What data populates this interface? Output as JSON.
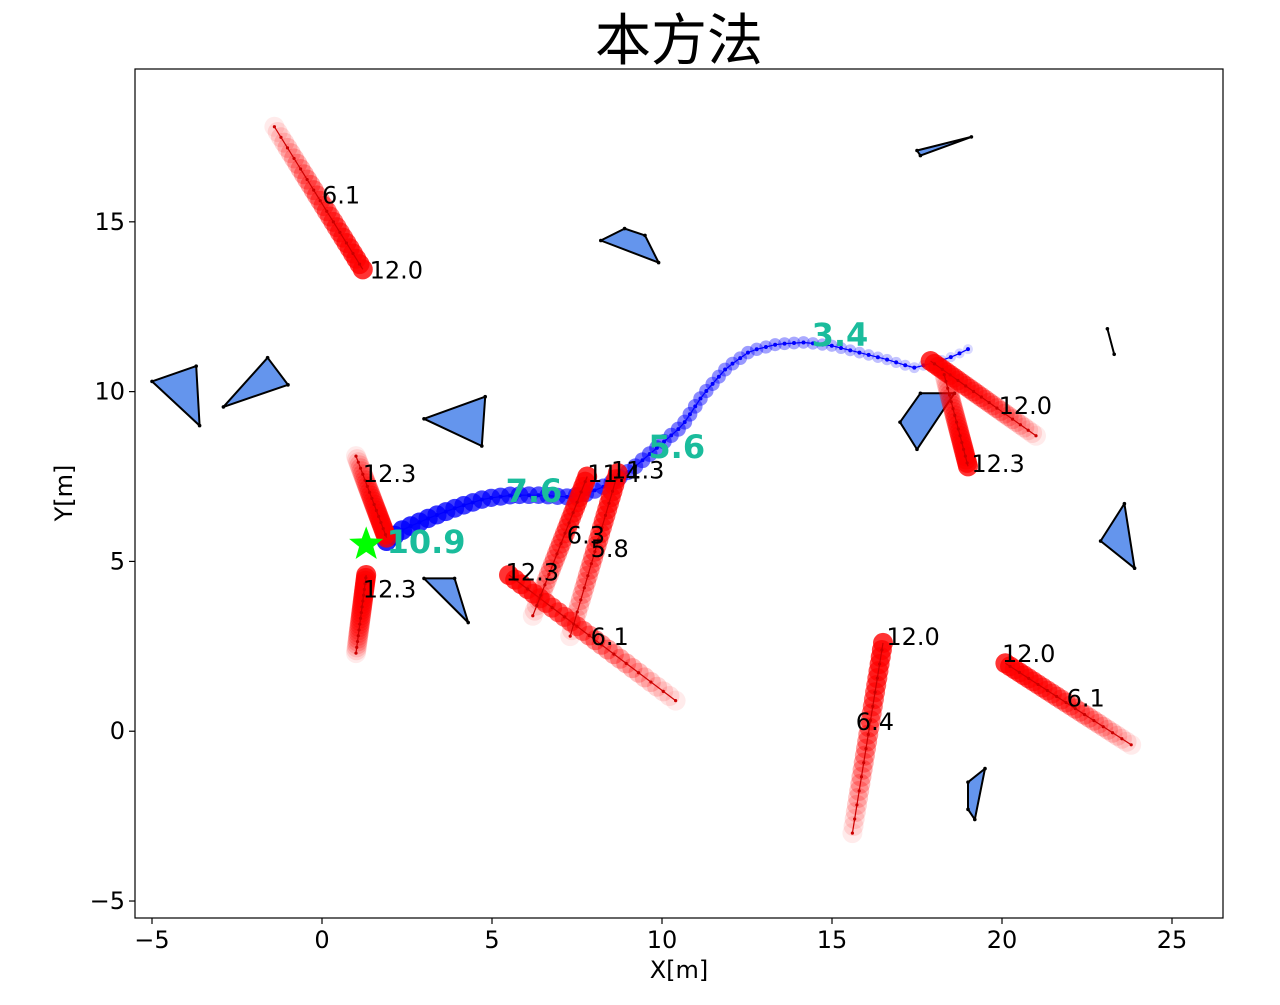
{
  "chart_data": {
    "type": "scatter",
    "title": "本方法",
    "xlabel": "X[m]",
    "ylabel": "Y[m]",
    "xlim": [
      -5.5,
      26.5
    ],
    "ylim": [
      -5.5,
      19.5
    ],
    "xticks": [
      -5,
      0,
      5,
      10,
      15,
      20,
      25
    ],
    "yticks": [
      -5,
      0,
      5,
      10,
      15
    ],
    "xtick_labels": [
      "−5",
      "0",
      "5",
      "10",
      "15",
      "20",
      "25"
    ],
    "ytick_labels": [
      "−5",
      "0",
      "5",
      "10",
      "15"
    ],
    "grid": false,
    "colors": {
      "robot_path": "#0000ff",
      "robot_label": "#1abc9c",
      "pedestrian": "#ff0000",
      "obstacle_fill": "#6495ed",
      "obstacle_edge": "#000000",
      "goal": "#00ff00"
    },
    "goal": {
      "x": 1.3,
      "y": 5.5,
      "marker": "star"
    },
    "robot_path": {
      "points": [
        [
          1.9,
          5.6
        ],
        [
          2.4,
          5.95
        ],
        [
          3.2,
          6.3
        ],
        [
          4.0,
          6.6
        ],
        [
          4.8,
          6.85
        ],
        [
          5.6,
          6.95
        ],
        [
          6.4,
          6.95
        ],
        [
          7.2,
          6.9
        ],
        [
          7.8,
          7.0
        ],
        [
          8.4,
          7.25
        ],
        [
          9.1,
          7.7
        ],
        [
          9.8,
          8.3
        ],
        [
          10.6,
          9.0
        ],
        [
          11.2,
          9.9
        ],
        [
          11.9,
          10.7
        ],
        [
          12.6,
          11.2
        ],
        [
          13.4,
          11.4
        ],
        [
          14.2,
          11.45
        ],
        [
          15.0,
          11.35
        ],
        [
          15.8,
          11.15
        ],
        [
          16.6,
          10.95
        ],
        [
          17.4,
          10.7
        ],
        [
          18.0,
          10.85
        ],
        [
          18.6,
          11.05
        ],
        [
          19.0,
          11.25
        ]
      ],
      "labels": [
        {
          "text": "10.9",
          "x": 1.9,
          "y": 5.6
        },
        {
          "text": "7.6",
          "x": 5.4,
          "y": 7.1
        },
        {
          "text": "5.6",
          "x": 9.6,
          "y": 8.4
        },
        {
          "text": "3.4",
          "x": 14.4,
          "y": 11.7
        }
      ]
    },
    "pedestrians": [
      {
        "start": [
          -1.4,
          17.8
        ],
        "end": [
          1.2,
          13.6
        ],
        "labels": [
          {
            "text": "6.1",
            "x": 0.0,
            "y": 15.8
          },
          {
            "text": "12.0",
            "x": 1.4,
            "y": 13.6
          }
        ]
      },
      {
        "start": [
          1.0,
          8.1
        ],
        "end": [
          1.9,
          5.7
        ],
        "labels": [
          {
            "text": "12.3",
            "x": 1.2,
            "y": 7.6
          }
        ]
      },
      {
        "start": [
          1.0,
          2.3
        ],
        "end": [
          1.3,
          4.6
        ],
        "labels": [
          {
            "text": "12.3",
            "x": 1.2,
            "y": 4.2
          }
        ]
      },
      {
        "start": [
          10.4,
          0.9
        ],
        "end": [
          5.5,
          4.6
        ],
        "labels": [
          {
            "text": "12.3",
            "x": 5.4,
            "y": 4.7
          },
          {
            "text": "6.1",
            "x": 7.9,
            "y": 2.8
          }
        ]
      },
      {
        "start": [
          6.2,
          3.4
        ],
        "end": [
          7.8,
          7.5
        ],
        "labels": [
          {
            "text": "6.3",
            "x": 7.2,
            "y": 5.8
          },
          {
            "text": "11.4",
            "x": 7.8,
            "y": 7.6
          }
        ]
      },
      {
        "start": [
          7.3,
          2.8
        ],
        "end": [
          8.7,
          7.6
        ],
        "labels": [
          {
            "text": "5.8",
            "x": 7.9,
            "y": 5.4
          },
          {
            "text": "11.3",
            "x": 8.5,
            "y": 7.7
          }
        ]
      },
      {
        "start": [
          15.6,
          -3.0
        ],
        "end": [
          16.5,
          2.6
        ],
        "labels": [
          {
            "text": "6.4",
            "x": 15.7,
            "y": 0.3
          },
          {
            "text": "12.0",
            "x": 16.6,
            "y": 2.8
          }
        ]
      },
      {
        "start": [
          23.8,
          -0.4
        ],
        "end": [
          20.1,
          2.0
        ],
        "labels": [
          {
            "text": "12.0",
            "x": 20.0,
            "y": 2.3
          },
          {
            "text": "6.1",
            "x": 21.9,
            "y": 1.0
          }
        ]
      },
      {
        "start": [
          21.0,
          8.7
        ],
        "end": [
          17.9,
          10.9
        ],
        "labels": [
          {
            "text": "12.0",
            "x": 19.9,
            "y": 9.6
          }
        ]
      },
      {
        "start": [
          18.3,
          10.5
        ],
        "end": [
          19.0,
          7.8
        ],
        "labels": [
          {
            "text": "12.3",
            "x": 19.1,
            "y": 7.9
          }
        ]
      }
    ],
    "obstacles": [
      [
        [
          -5.0,
          10.3
        ],
        [
          -3.7,
          10.75
        ],
        [
          -3.6,
          9.0
        ]
      ],
      [
        [
          -2.9,
          9.55
        ],
        [
          -1.6,
          11.0
        ],
        [
          -1.0,
          10.2
        ]
      ],
      [
        [
          3.0,
          9.2
        ],
        [
          4.8,
          9.85
        ],
        [
          4.7,
          8.4
        ]
      ],
      [
        [
          3.0,
          4.5
        ],
        [
          3.9,
          4.5
        ],
        [
          4.3,
          3.2
        ]
      ],
      [
        [
          8.2,
          14.45
        ],
        [
          8.9,
          14.8
        ],
        [
          9.5,
          14.6
        ],
        [
          9.9,
          13.8
        ]
      ],
      [
        [
          17.6,
          9.95
        ],
        [
          18.6,
          9.95
        ],
        [
          17.5,
          8.3
        ],
        [
          17.0,
          9.1
        ]
      ],
      [
        [
          17.5,
          17.1
        ],
        [
          19.1,
          17.5
        ],
        [
          17.6,
          16.95
        ]
      ],
      [
        [
          23.1,
          11.85
        ],
        [
          23.3,
          11.1
        ]
      ],
      [
        [
          23.6,
          6.7
        ],
        [
          23.9,
          4.8
        ],
        [
          22.9,
          5.6
        ]
      ],
      [
        [
          19.0,
          -1.5
        ],
        [
          19.5,
          -1.1
        ],
        [
          19.2,
          -2.6
        ],
        [
          19.0,
          -2.3
        ]
      ]
    ]
  }
}
